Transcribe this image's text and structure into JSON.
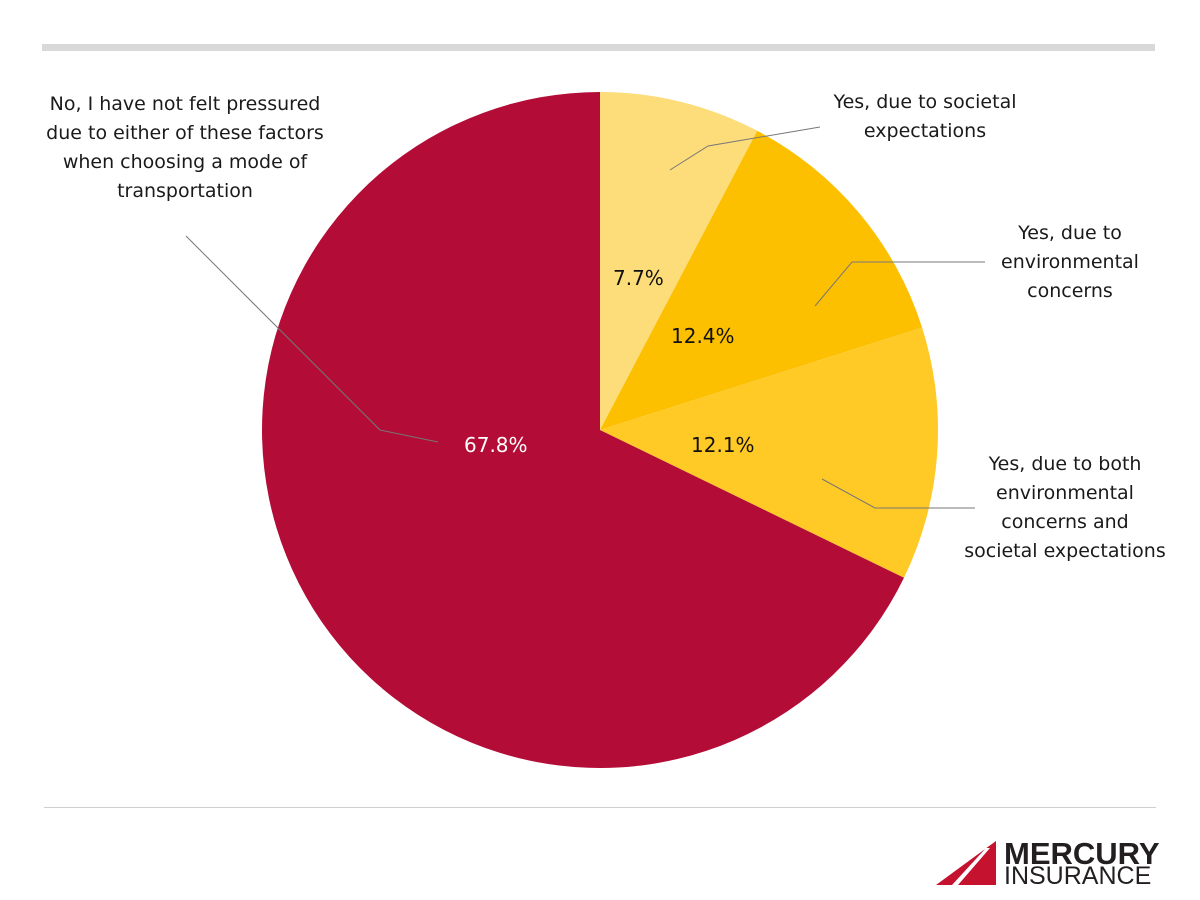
{
  "chart_data": {
    "type": "pie",
    "title": "",
    "start_angle": "12 o'clock, clockwise",
    "slices": [
      {
        "label": "Yes, due to societal expectations",
        "value": 7.7,
        "display": "7.7%",
        "color": "#FDDC7A"
      },
      {
        "label": "Yes, due to environmental concerns",
        "value": 12.4,
        "display": "12.4%",
        "color": "#FDC000"
      },
      {
        "label": "Yes, due to both environmental concerns and societal expectations",
        "value": 12.1,
        "display": "12.1%",
        "color": "#FFC926"
      },
      {
        "label": "No, I have not felt pressured due to either of these factors when choosing a mode of transportation",
        "value": 67.8,
        "display": "67.8%",
        "color": "#B30C37"
      }
    ]
  },
  "labels": {
    "societal": [
      "Yes, due to societal",
      "expectations"
    ],
    "environmental": [
      "Yes, due to",
      "environmental",
      "concerns"
    ],
    "both": [
      "Yes, due to both",
      "environmental",
      "concerns and",
      "societal expectations"
    ],
    "no": [
      "No, I have not felt pressured",
      "due to either of these factors",
      "when choosing a mode of",
      "transportation"
    ]
  },
  "pcts": {
    "societal": "7.7%",
    "environmental": "12.4%",
    "both": "12.1%",
    "no": "67.8%"
  },
  "logo": {
    "line1": "MERCURY",
    "line2": "INSURANCE",
    "accent": "#C4122F"
  }
}
